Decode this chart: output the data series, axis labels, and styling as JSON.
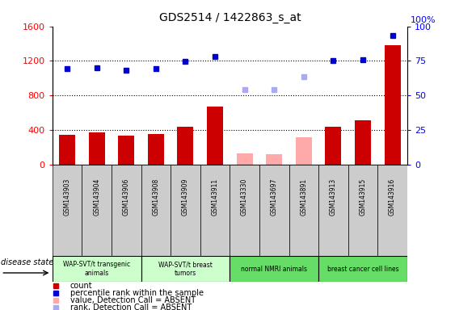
{
  "title": "GDS2514 / 1422863_s_at",
  "samples": [
    "GSM143903",
    "GSM143904",
    "GSM143906",
    "GSM143908",
    "GSM143909",
    "GSM143911",
    "GSM143330",
    "GSM143697",
    "GSM143891",
    "GSM143913",
    "GSM143915",
    "GSM143916"
  ],
  "count_values": [
    340,
    370,
    330,
    350,
    440,
    670,
    null,
    null,
    null,
    440,
    510,
    1380
  ],
  "count_absent": [
    null,
    null,
    null,
    null,
    null,
    null,
    130,
    120,
    310,
    null,
    null,
    null
  ],
  "rank_values": [
    1110,
    1120,
    1090,
    1110,
    1190,
    1250,
    null,
    null,
    null,
    1200,
    1210,
    1490
  ],
  "rank_absent": [
    null,
    null,
    null,
    null,
    null,
    null,
    870,
    870,
    1020,
    null,
    null,
    null
  ],
  "group_spans": [
    {
      "label": "WAP-SVT/t transgenic\nanimals",
      "indices": [
        0,
        1,
        2
      ],
      "color": "#ccffcc"
    },
    {
      "label": "WAP-SVT/t breast\ntumors",
      "indices": [
        3,
        4,
        5
      ],
      "color": "#ccffcc"
    },
    {
      "label": "normal NMRI animals",
      "indices": [
        6,
        7,
        8
      ],
      "color": "#66dd66"
    },
    {
      "label": "breast cancer cell lines",
      "indices": [
        9,
        10,
        11
      ],
      "color": "#66dd66"
    }
  ],
  "ylim_left": [
    0,
    1600
  ],
  "ylim_right": [
    0,
    100
  ],
  "yticks_left": [
    0,
    400,
    800,
    1200,
    1600
  ],
  "yticks_right": [
    0,
    25,
    50,
    75,
    100
  ],
  "bar_color": "#cc0000",
  "bar_absent_color": "#ffaaaa",
  "dot_color": "#0000cc",
  "dot_absent_color": "#aaaaee",
  "grid_dotted_at": [
    400,
    800,
    1200
  ],
  "bg_color": "#ffffff",
  "sample_box_color": "#cccccc",
  "disease_state_label": "disease state",
  "legend_items": [
    {
      "color": "#cc0000",
      "label": "count",
      "marker": "s"
    },
    {
      "color": "#0000cc",
      "label": "percentile rank within the sample",
      "marker": "s"
    },
    {
      "color": "#ffaaaa",
      "label": "value, Detection Call = ABSENT",
      "marker": "s"
    },
    {
      "color": "#aaaaee",
      "label": "rank, Detection Call = ABSENT",
      "marker": "s"
    }
  ]
}
